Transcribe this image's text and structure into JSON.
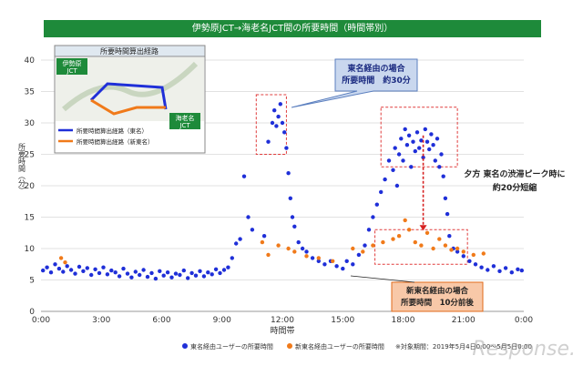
{
  "title": "伊勢原JCT→海老名JCT間の所要時間（時間帯別）",
  "colors": {
    "tomei": "#1f2fd8",
    "shintomei": "#f07a1a",
    "title_bg": "#1e8a3a"
  },
  "chart_data": {
    "type": "scatter",
    "xlabel": "時間帯",
    "ylabel": "所要時間（分）",
    "x_ticks": [
      "0:00",
      "3:00",
      "6:00",
      "9:00",
      "12:00",
      "15:00",
      "18:00",
      "21:00",
      "0:00"
    ],
    "y_ticks": [
      0,
      5,
      10,
      15,
      20,
      25,
      30,
      35,
      40
    ],
    "ylim": [
      0,
      40
    ],
    "xlim_hours": [
      0,
      24
    ],
    "series": [
      {
        "name": "東名経由ユーザーの所要時間",
        "color": "#1f2fd8",
        "points": [
          [
            0.1,
            6.5
          ],
          [
            0.3,
            7
          ],
          [
            0.5,
            6.2
          ],
          [
            0.7,
            7.5
          ],
          [
            0.9,
            6.8
          ],
          [
            1.1,
            6.3
          ],
          [
            1.3,
            7.2
          ],
          [
            1.5,
            6.6
          ],
          [
            1.7,
            6
          ],
          [
            1.9,
            7.1
          ],
          [
            2.1,
            6.4
          ],
          [
            2.3,
            6.9
          ],
          [
            2.5,
            5.8
          ],
          [
            2.7,
            6.7
          ],
          [
            2.9,
            6.1
          ],
          [
            3.1,
            7
          ],
          [
            3.3,
            5.9
          ],
          [
            3.5,
            6.5
          ],
          [
            3.7,
            6.2
          ],
          [
            3.9,
            5.6
          ],
          [
            4.1,
            6.8
          ],
          [
            4.3,
            6
          ],
          [
            4.5,
            5.4
          ],
          [
            4.7,
            6.3
          ],
          [
            4.9,
            5.8
          ],
          [
            5.1,
            6.6
          ],
          [
            5.3,
            5.5
          ],
          [
            5.5,
            6.1
          ],
          [
            5.7,
            5.2
          ],
          [
            5.9,
            6.4
          ],
          [
            6.1,
            5.7
          ],
          [
            6.3,
            6.2
          ],
          [
            6.5,
            5.4
          ],
          [
            6.7,
            6
          ],
          [
            6.9,
            5.8
          ],
          [
            7.1,
            6.5
          ],
          [
            7.3,
            5.3
          ],
          [
            7.5,
            6.1
          ],
          [
            7.7,
            5.7
          ],
          [
            7.9,
            6.4
          ],
          [
            8.1,
            5.6
          ],
          [
            8.3,
            6.2
          ],
          [
            8.5,
            5.9
          ],
          [
            8.7,
            6.7
          ],
          [
            8.9,
            6.1
          ],
          [
            9.1,
            6.6
          ],
          [
            9.3,
            7
          ],
          [
            9.5,
            8.5
          ],
          [
            9.7,
            10.8
          ],
          [
            9.9,
            11.5
          ],
          [
            10.1,
            21.5
          ],
          [
            10.3,
            15
          ],
          [
            10.5,
            13
          ],
          [
            11.1,
            12
          ],
          [
            11.3,
            27
          ],
          [
            11.5,
            30
          ],
          [
            11.6,
            32
          ],
          [
            11.7,
            29.5
          ],
          [
            11.8,
            31
          ],
          [
            11.9,
            33
          ],
          [
            12.0,
            30
          ],
          [
            12.1,
            28.5
          ],
          [
            12.2,
            26
          ],
          [
            12.3,
            22
          ],
          [
            12.4,
            18
          ],
          [
            12.5,
            15
          ],
          [
            12.6,
            13.5
          ],
          [
            12.8,
            11
          ],
          [
            13.0,
            10
          ],
          [
            13.2,
            9.5
          ],
          [
            13.5,
            8.5
          ],
          [
            13.8,
            8
          ],
          [
            14.1,
            7.5
          ],
          [
            14.4,
            8
          ],
          [
            14.7,
            7.2
          ],
          [
            15.0,
            6.8
          ],
          [
            15.2,
            8
          ],
          [
            15.5,
            7.5
          ],
          [
            15.8,
            9
          ],
          [
            16.1,
            10.5
          ],
          [
            16.3,
            13
          ],
          [
            16.5,
            15
          ],
          [
            16.7,
            17
          ],
          [
            16.9,
            19
          ],
          [
            17.1,
            21
          ],
          [
            17.3,
            24
          ],
          [
            17.5,
            22.5
          ],
          [
            17.6,
            26
          ],
          [
            17.7,
            20
          ],
          [
            17.8,
            25
          ],
          [
            17.9,
            27.5
          ],
          [
            18.0,
            24
          ],
          [
            18.1,
            29
          ],
          [
            18.2,
            26.5
          ],
          [
            18.3,
            28
          ],
          [
            18.4,
            23
          ],
          [
            18.5,
            27
          ],
          [
            18.6,
            25.5
          ],
          [
            18.7,
            28.5
          ],
          [
            18.8,
            26
          ],
          [
            18.9,
            27.2
          ],
          [
            19.0,
            24.5
          ],
          [
            19.1,
            29
          ],
          [
            19.2,
            27
          ],
          [
            19.3,
            25.8
          ],
          [
            19.4,
            28.2
          ],
          [
            19.5,
            26.5
          ],
          [
            19.6,
            24
          ],
          [
            19.7,
            27.5
          ],
          [
            19.8,
            23
          ],
          [
            19.9,
            25
          ],
          [
            20.0,
            21.5
          ],
          [
            20.1,
            18
          ],
          [
            20.2,
            15.5
          ],
          [
            20.3,
            12
          ],
          [
            20.5,
            10
          ],
          [
            20.7,
            9.5
          ],
          [
            21.0,
            8.8
          ],
          [
            21.3,
            8
          ],
          [
            21.6,
            7.5
          ],
          [
            21.9,
            7
          ],
          [
            22.2,
            6.6
          ],
          [
            22.5,
            7.2
          ],
          [
            22.8,
            6.4
          ],
          [
            23.1,
            6.9
          ],
          [
            23.4,
            6.2
          ],
          [
            23.7,
            6.7
          ],
          [
            23.9,
            6.5
          ]
        ]
      },
      {
        "name": "新東名経由ユーザーの所要時間",
        "color": "#f07a1a",
        "points": [
          [
            1.0,
            8.5
          ],
          [
            1.2,
            7.8
          ],
          [
            11.0,
            11
          ],
          [
            11.3,
            9
          ],
          [
            11.8,
            10.5
          ],
          [
            12.3,
            10
          ],
          [
            12.6,
            9.5
          ],
          [
            13.2,
            8.8
          ],
          [
            13.8,
            8.5
          ],
          [
            14.5,
            8
          ],
          [
            15.5,
            10
          ],
          [
            16.0,
            9.5
          ],
          [
            16.5,
            10.5
          ],
          [
            17.0,
            11
          ],
          [
            17.5,
            11.5
          ],
          [
            17.8,
            12
          ],
          [
            18.1,
            14.5
          ],
          [
            18.3,
            13
          ],
          [
            18.6,
            11
          ],
          [
            18.9,
            10.5
          ],
          [
            19.2,
            12.5
          ],
          [
            19.5,
            10
          ],
          [
            19.8,
            11.5
          ],
          [
            20.1,
            10.5
          ],
          [
            20.4,
            9.8
          ],
          [
            20.7,
            10
          ],
          [
            21.0,
            9.5
          ],
          [
            21.5,
            9
          ],
          [
            22.0,
            9.2
          ]
        ]
      }
    ],
    "annotations": {
      "tomei_callout": "東名経由の場合\n所要時間　約30分",
      "shintomei_callout": "新東名経由の場合\n所要時間　10分前後",
      "peak_text": "夕方 東名の渋滞ピーク時に\n約20分短縮"
    },
    "legend_position": "bottom",
    "note": "※対象期間：2019年5月4日0:00～5月5日0:00"
  },
  "map_inset": {
    "heading": "所要時間算出経路",
    "label_isehara": "伊勢原\nJCT",
    "label_ebina": "海老名\nJCT",
    "legend_tomei": "所要時間算出経路（東名）",
    "legend_shintomei": "所要時間算出経路（新東名）"
  },
  "watermark": "Response."
}
